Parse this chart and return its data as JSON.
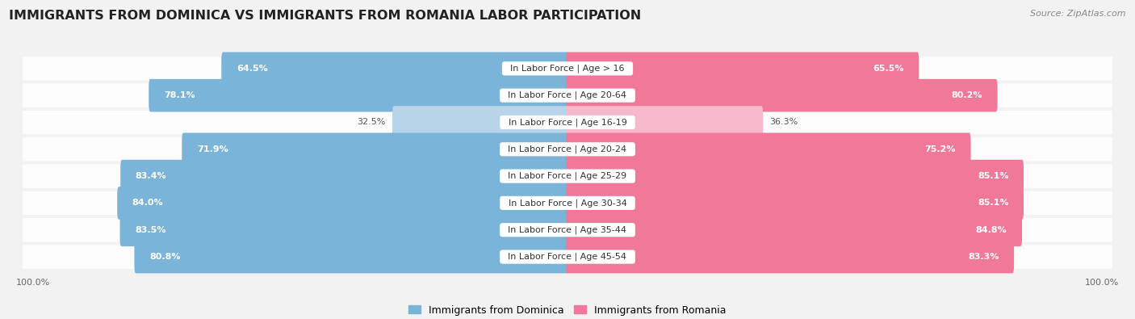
{
  "title": "IMMIGRANTS FROM DOMINICA VS IMMIGRANTS FROM ROMANIA LABOR PARTICIPATION",
  "source": "Source: ZipAtlas.com",
  "categories": [
    "In Labor Force | Age > 16",
    "In Labor Force | Age 20-64",
    "In Labor Force | Age 16-19",
    "In Labor Force | Age 20-24",
    "In Labor Force | Age 25-29",
    "In Labor Force | Age 30-34",
    "In Labor Force | Age 35-44",
    "In Labor Force | Age 45-54"
  ],
  "dominica_values": [
    64.5,
    78.1,
    32.5,
    71.9,
    83.4,
    84.0,
    83.5,
    80.8
  ],
  "romania_values": [
    65.5,
    80.2,
    36.3,
    75.2,
    85.1,
    85.1,
    84.8,
    83.3
  ],
  "dominica_color": "#7ab4d8",
  "dominica_color_light": "#b8d4e8",
  "romania_color": "#f07898",
  "romania_color_light": "#f8b8cc",
  "dominica_label": "Immigrants from Dominica",
  "romania_label": "Immigrants from Romania",
  "bg_color": "#f2f2f2",
  "row_bg_color": "#e8e8e8",
  "title_fontsize": 11.5,
  "source_fontsize": 8,
  "label_fontsize": 8,
  "value_fontsize": 8,
  "tick_fontsize": 8,
  "legend_fontsize": 9,
  "xlim": 100.0,
  "low_threshold": 45
}
